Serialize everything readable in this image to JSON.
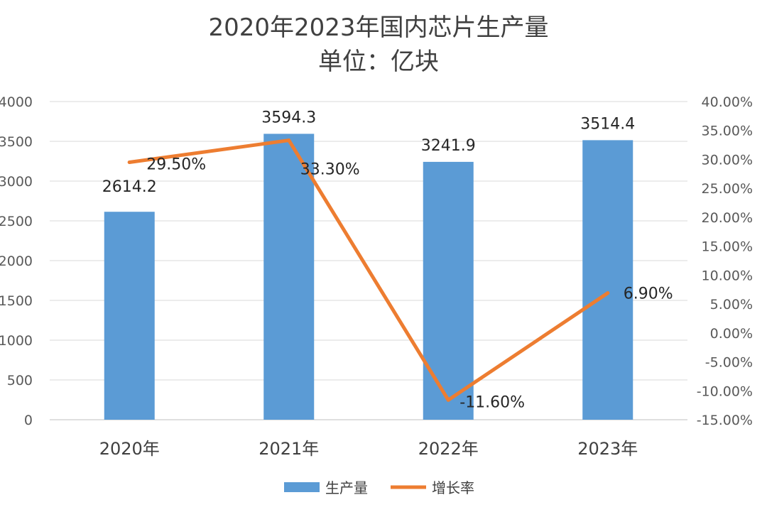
{
  "chart_data": {
    "type": "bar+line",
    "title": "2020年2023年国内芯片生产量",
    "subtitle": "单位：亿块",
    "categories": [
      "2020年",
      "2021年",
      "2022年",
      "2023年"
    ],
    "series": [
      {
        "name": "生产量",
        "type": "bar",
        "axis": "left",
        "values": [
          2614.2,
          3594.3,
          3241.9,
          3514.4
        ],
        "labels": [
          "2614.2",
          "3594.3",
          "3241.9",
          "3514.4"
        ],
        "color": "#5b9bd5"
      },
      {
        "name": "增长率",
        "type": "line",
        "axis": "right",
        "values": [
          29.5,
          33.3,
          -11.6,
          6.9
        ],
        "labels": [
          "29.50%",
          "33.30%",
          "-11.60%",
          "6.90%"
        ],
        "color": "#ed7d31"
      }
    ],
    "y_left": {
      "min": 0,
      "max": 4000,
      "ticks": [
        "0",
        "500",
        "1000",
        "1500",
        "2000",
        "2500",
        "3000",
        "3500",
        "4000"
      ]
    },
    "y_right": {
      "min": -15,
      "max": 40,
      "ticks": [
        "-15.00%",
        "-10.00%",
        "-5.00%",
        "0.00%",
        "5.00%",
        "10.00%",
        "15.00%",
        "20.00%",
        "25.00%",
        "30.00%",
        "35.00%",
        "40.00%"
      ]
    },
    "grid": true,
    "legend": "bottom-center"
  }
}
